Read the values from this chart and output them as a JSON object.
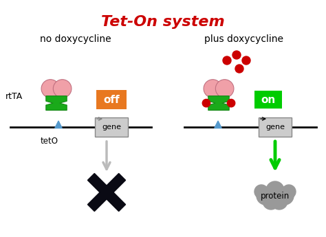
{
  "title": "Tet-On system",
  "title_color": "#cc0000",
  "title_fontsize": 16,
  "bg_color": "#ffffff",
  "left_label": "no doxycycline",
  "right_label": "plus doxycycline",
  "label_fontsize": 10,
  "rtta_label": "rtTA",
  "teto_label": "tetO",
  "gene_label": "gene",
  "protein_label": "protein",
  "off_label": "off",
  "on_label": "on",
  "pink_color": "#f0a0a8",
  "pink_edge": "#c07080",
  "green_color": "#1aaa1a",
  "green_dark": "#158815",
  "orange_color": "#e87820",
  "bright_green": "#00cc00",
  "red_dot_color": "#cc0000",
  "blue_tri_color": "#5599cc",
  "gray_color": "#999999",
  "dark_color": "#0a0a14",
  "gene_box_color": "#cccccc",
  "gene_box_edge": "#888888",
  "arrow_gray": "#bbbbbb",
  "dna_color": "#000000"
}
